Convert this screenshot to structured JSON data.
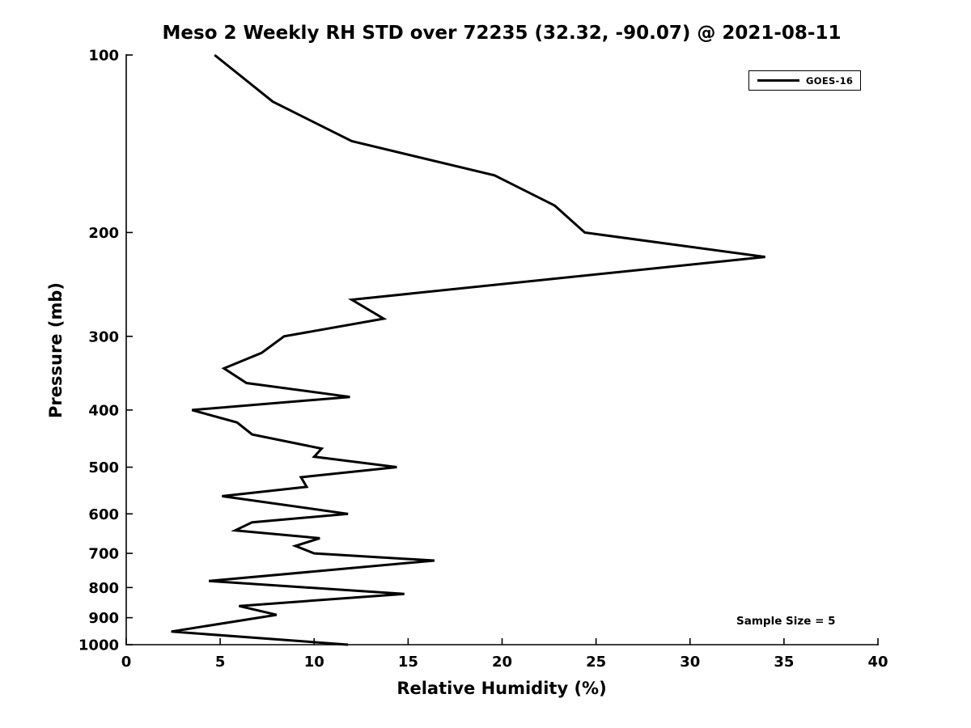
{
  "chart_data": {
    "type": "line",
    "title": "Meso 2 Weekly RH STD over 72235 (32.32, -90.07) @ 2021-08-11",
    "xlabel": "Relative Humidity (%)",
    "ylabel": "Pressure (mb)",
    "xlim": [
      0,
      40
    ],
    "ylim": [
      100,
      1000
    ],
    "y_scale": "log",
    "y_inverted": true,
    "grid": false,
    "x_ticks": [
      0,
      5,
      10,
      15,
      20,
      25,
      30,
      35,
      40
    ],
    "y_ticks": [
      100,
      200,
      300,
      400,
      500,
      600,
      700,
      800,
      900,
      1000
    ],
    "legend": {
      "position": "top-right",
      "entries": [
        "GOES-16"
      ]
    },
    "annotation": "Sample Size = 5",
    "line_color": "#000000",
    "series": [
      {
        "name": "GOES-16",
        "color": "#000000",
        "pressure_mb": [
          100,
          120,
          140,
          160,
          180,
          200,
          220,
          260,
          280,
          300,
          320,
          340,
          360,
          380,
          400,
          420,
          440,
          465,
          480,
          500,
          520,
          540,
          560,
          600,
          620,
          640,
          660,
          680,
          700,
          720,
          780,
          820,
          860,
          890,
          950,
          1000
        ],
        "rh_pct": [
          4.7,
          7.8,
          12.0,
          19.6,
          22.8,
          24.4,
          34.0,
          12.0,
          13.7,
          8.4,
          7.2,
          5.2,
          6.4,
          11.9,
          3.5,
          5.9,
          6.7,
          10.4,
          10.0,
          14.4,
          9.3,
          9.6,
          5.1,
          11.8,
          6.7,
          5.8,
          10.3,
          9.0,
          10.0,
          16.4,
          4.4,
          14.8,
          6.0,
          8.0,
          2.4,
          11.8
        ]
      }
    ]
  }
}
